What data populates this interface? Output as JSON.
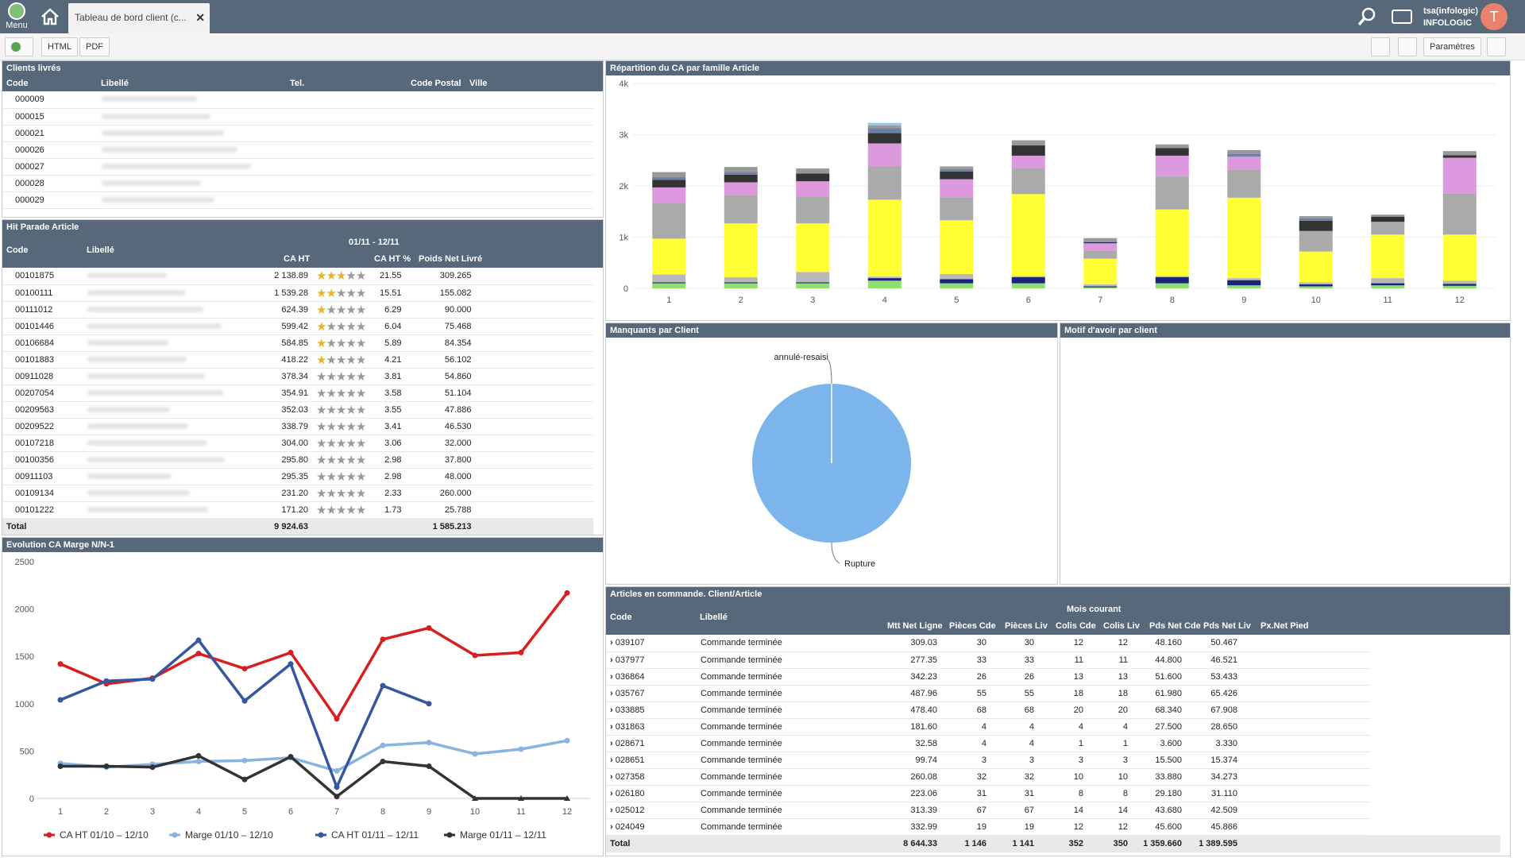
{
  "app": {
    "menu_label": "Menu",
    "tab_title": "Tableau de bord client (c...",
    "user_name": "tsa(infologic)",
    "user_company": "INFOLOGIC",
    "avatar_letter": "T"
  },
  "toolbar": {
    "html_label": "HTML",
    "pdf_label": "PDF",
    "params_label": "Paramètres"
  },
  "clients": {
    "title": "Clients livrés",
    "headers": [
      "Code",
      "Libellé",
      "Tel.",
      "Code Postal",
      "Ville"
    ],
    "rows": [
      "000009",
      "000015",
      "000021",
      "000026",
      "000027",
      "000028",
      "000029"
    ]
  },
  "hitparade": {
    "title": "Hit Parade Article",
    "period": "01/11 - 12/11",
    "headers": {
      "code": "Code",
      "libelle": "Libellé",
      "caht": "CA HT",
      "cahtpct": "CA HT %",
      "poids": "Poids Net Livré"
    },
    "rows": [
      {
        "code": "00101875",
        "ca": "2 138.89",
        "stars": 3,
        "pct": "21.55",
        "poids": "309.265"
      },
      {
        "code": "00100111",
        "ca": "1 539.28",
        "stars": 2,
        "pct": "15.51",
        "poids": "155.082"
      },
      {
        "code": "00111012",
        "ca": "624.39",
        "stars": 1,
        "pct": "6.29",
        "poids": "90.000"
      },
      {
        "code": "00101446",
        "ca": "599.42",
        "stars": 1,
        "pct": "6.04",
        "poids": "75.468"
      },
      {
        "code": "00106684",
        "ca": "584.85",
        "stars": 1,
        "pct": "5.89",
        "poids": "84.354"
      },
      {
        "code": "00101883",
        "ca": "418.22",
        "stars": 1,
        "pct": "4.21",
        "poids": "56.102"
      },
      {
        "code": "00911028",
        "ca": "378.34",
        "stars": 0,
        "pct": "3.81",
        "poids": "54.860"
      },
      {
        "code": "00207054",
        "ca": "354.91",
        "stars": 0,
        "pct": "3.58",
        "poids": "51.104"
      },
      {
        "code": "00209563",
        "ca": "352.03",
        "stars": 0,
        "pct": "3.55",
        "poids": "47.886"
      },
      {
        "code": "00209522",
        "ca": "338.79",
        "stars": 0,
        "pct": "3.41",
        "poids": "46.530"
      },
      {
        "code": "00107218",
        "ca": "304.00",
        "stars": 0,
        "pct": "3.06",
        "poids": "32.000"
      },
      {
        "code": "00100356",
        "ca": "295.80",
        "stars": 0,
        "pct": "2.98",
        "poids": "37.800"
      },
      {
        "code": "00911103",
        "ca": "295.35",
        "stars": 0,
        "pct": "2.98",
        "poids": "48.000"
      },
      {
        "code": "00109134",
        "ca": "231.20",
        "stars": 0,
        "pct": "2.33",
        "poids": "260.000"
      },
      {
        "code": "00101222",
        "ca": "171.20",
        "stars": 0,
        "pct": "1.73",
        "poids": "25.788"
      }
    ],
    "total_label": "Total",
    "total_ca": "9 924.63",
    "total_poids": "1 585.213"
  },
  "evolution": {
    "title": "Evolution CA Marge N/N-1"
  },
  "repartition": {
    "title": "Répartition du CA par famille Article"
  },
  "manquants": {
    "title": "Manquants par Client"
  },
  "motif": {
    "title": "Motif d'avoir par client"
  },
  "articles": {
    "title": "Articles en commande. Client/Article",
    "group": "Mois courant",
    "headers": [
      "Code",
      "Libellé",
      "Mtt Net Ligne",
      "Pièces Cde",
      "Pièces Liv",
      "Colis Cde",
      "Colis Liv",
      "Pds Net Cde",
      "Pds Net Liv",
      "Px.Net Pied"
    ],
    "rows": [
      [
        "039107",
        "Commande terminée",
        "309.03",
        "30",
        "30",
        "12",
        "12",
        "48.160",
        "50.467"
      ],
      [
        "037977",
        "Commande terminée",
        "277.35",
        "33",
        "33",
        "11",
        "11",
        "44.800",
        "46.521"
      ],
      [
        "036864",
        "Commande terminée",
        "342.23",
        "26",
        "26",
        "13",
        "13",
        "51.600",
        "53.433"
      ],
      [
        "035767",
        "Commande terminée",
        "487.96",
        "55",
        "55",
        "18",
        "18",
        "61.980",
        "65.426"
      ],
      [
        "033885",
        "Commande terminée",
        "478.40",
        "68",
        "68",
        "20",
        "20",
        "68.340",
        "67.908"
      ],
      [
        "031863",
        "Commande terminée",
        "181.60",
        "4",
        "4",
        "4",
        "4",
        "27.500",
        "28.650"
      ],
      [
        "028671",
        "Commande terminée",
        "32.58",
        "4",
        "4",
        "1",
        "1",
        "3.600",
        "3.330"
      ],
      [
        "028651",
        "Commande terminée",
        "99.74",
        "3",
        "3",
        "3",
        "3",
        "15.500",
        "15.374"
      ],
      [
        "027358",
        "Commande terminée",
        "260.08",
        "32",
        "32",
        "10",
        "10",
        "33.880",
        "34.273"
      ],
      [
        "026180",
        "Commande terminée",
        "223.06",
        "31",
        "31",
        "8",
        "8",
        "29.180",
        "31.110"
      ],
      [
        "025012",
        "Commande terminée",
        "313.39",
        "67",
        "67",
        "14",
        "14",
        "43.680",
        "42.509"
      ],
      [
        "024049",
        "Commande terminée",
        "332.99",
        "19",
        "19",
        "12",
        "12",
        "45.600",
        "45.866"
      ]
    ],
    "total": [
      "Total",
      "",
      "8 644.33",
      "1 146",
      "1 141",
      "352",
      "350",
      "1 359.660",
      "1 389.595"
    ]
  },
  "chart_data": [
    {
      "type": "bar",
      "title": "Répartition du CA par famille Article",
      "stacked": true,
      "categories": [
        "1",
        "2",
        "3",
        "4",
        "5",
        "6",
        "7",
        "8",
        "9",
        "10",
        "11",
        "12"
      ],
      "ylim": [
        0,
        4000
      ],
      "yticks": [
        "0",
        "1k",
        "2k",
        "3k",
        "4k"
      ],
      "series": [
        {
          "color": "#90e070",
          "values": [
            100,
            100,
            100,
            150,
            100,
            100,
            20,
            100,
            60,
            40,
            60,
            50
          ]
        },
        {
          "color": "#1a237e",
          "values": [
            20,
            20,
            20,
            50,
            80,
            120,
            20,
            120,
            100,
            40,
            40,
            40
          ]
        },
        {
          "color": "#b8b8b8",
          "values": [
            150,
            100,
            200,
            30,
            100,
            20,
            40,
            20,
            40,
            40,
            100,
            60
          ]
        },
        {
          "color": "#ffff33",
          "values": [
            700,
            1050,
            950,
            1500,
            1050,
            1600,
            500,
            1300,
            1570,
            600,
            850,
            900
          ]
        },
        {
          "color": "#aaaaaa",
          "values": [
            700,
            550,
            520,
            650,
            450,
            500,
            150,
            650,
            550,
            400,
            250,
            800
          ]
        },
        {
          "color": "#dd99dd",
          "values": [
            300,
            250,
            300,
            450,
            350,
            250,
            150,
            400,
            250,
            0,
            0,
            700
          ]
        },
        {
          "color": "#333333",
          "values": [
            150,
            150,
            150,
            200,
            150,
            200,
            20,
            150,
            0,
            200,
            100,
            50
          ]
        },
        {
          "color": "#6e7fa8",
          "values": [
            50,
            50,
            0,
            100,
            50,
            0,
            20,
            0,
            50,
            50,
            0,
            0
          ]
        },
        {
          "color": "#999999",
          "values": [
            100,
            100,
            100,
            50,
            50,
            100,
            60,
            70,
            80,
            40,
            40,
            80
          ]
        },
        {
          "color": "#87ceeb",
          "values": [
            0,
            0,
            0,
            50,
            0,
            0,
            0,
            0,
            0,
            0,
            0,
            0
          ]
        }
      ]
    },
    {
      "type": "pie",
      "title": "Manquants par Client",
      "slices": [
        {
          "label": "Rupture",
          "value": 100,
          "color": "#7cb5ec"
        },
        {
          "label": "annulé-resaisi",
          "value": 0,
          "color": "#7cb5ec"
        }
      ]
    },
    {
      "type": "line",
      "title": "Evolution CA Marge N/N-1",
      "x": [
        1,
        2,
        3,
        4,
        5,
        6,
        7,
        8,
        9,
        10,
        11,
        12
      ],
      "ylim": [
        0,
        2500
      ],
      "yticks": [
        0,
        500,
        1000,
        1500,
        2000,
        2500
      ],
      "series": [
        {
          "name": "CA HT 01/10 – 12/10",
          "color": "#d81e1e",
          "values": [
            1420,
            1210,
            1270,
            1530,
            1370,
            1540,
            840,
            1680,
            1800,
            1510,
            1540,
            2170
          ]
        },
        {
          "name": "Marge 01/10 – 12/10",
          "color": "#87b4e0",
          "values": [
            370,
            330,
            360,
            390,
            400,
            430,
            290,
            560,
            590,
            470,
            520,
            610
          ]
        },
        {
          "name": "CA HT 01/11 – 12/11",
          "color": "#3656a2",
          "values": [
            1040,
            1240,
            1260,
            1670,
            1030,
            1420,
            120,
            1190,
            1000,
            null,
            null,
            null
          ]
        },
        {
          "name": "Marge 01/11 – 12/11",
          "color": "#333333",
          "values": [
            340,
            340,
            330,
            450,
            200,
            440,
            20,
            390,
            340,
            0,
            0,
            0
          ]
        }
      ]
    }
  ]
}
